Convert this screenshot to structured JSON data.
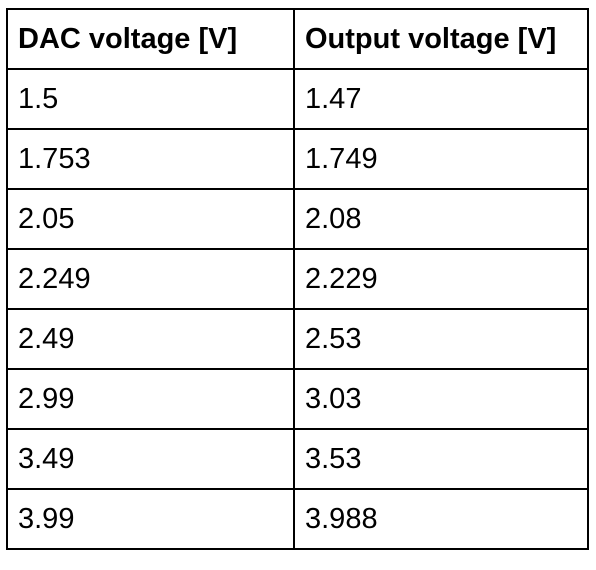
{
  "table": {
    "headers": [
      "DAC voltage [V]",
      "Output voltage [V]"
    ],
    "rows": [
      [
        "1.5",
        "1.47"
      ],
      [
        "1.753",
        "1.749"
      ],
      [
        "2.05",
        "2.08"
      ],
      [
        "2.249",
        "2.229"
      ],
      [
        "2.49",
        "2.53"
      ],
      [
        "2.99",
        "3.03"
      ],
      [
        "3.49",
        "3.53"
      ],
      [
        "3.99",
        "3.988"
      ]
    ]
  }
}
